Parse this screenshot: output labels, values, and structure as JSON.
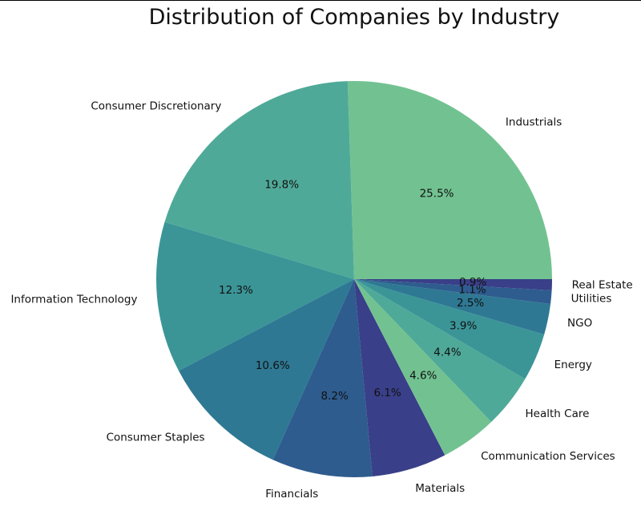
{
  "chart_data": {
    "type": "pie",
    "title": "Distribution of Companies by Industry",
    "start_angle_deg": 0,
    "direction": "counterclockwise",
    "slices": [
      {
        "label": "Industrials",
        "value": 25.5,
        "pct_label": "25.5%",
        "color": "#72c291"
      },
      {
        "label": "Consumer Discretionary",
        "value": 19.8,
        "pct_label": "19.8%",
        "color": "#4fa998"
      },
      {
        "label": "Information Technology",
        "value": 12.3,
        "pct_label": "12.3%",
        "color": "#3b9597"
      },
      {
        "label": "Consumer Staples",
        "value": 10.6,
        "pct_label": "10.6%",
        "color": "#2e7893"
      },
      {
        "label": "Financials",
        "value": 8.2,
        "pct_label": "8.2%",
        "color": "#2e5c8e"
      },
      {
        "label": "Materials",
        "value": 6.1,
        "pct_label": "6.1%",
        "color": "#393f88"
      },
      {
        "label": "Communication Services",
        "value": 4.6,
        "pct_label": "4.6%",
        "color": "#72c291"
      },
      {
        "label": "Health Care",
        "value": 4.4,
        "pct_label": "4.4%",
        "color": "#4fa998"
      },
      {
        "label": "Energy",
        "value": 3.9,
        "pct_label": "3.9%",
        "color": "#3b9597"
      },
      {
        "label": "NGO",
        "value": 2.5,
        "pct_label": "2.5%",
        "color": "#2e7893"
      },
      {
        "label": "Utilities",
        "value": 1.1,
        "pct_label": "1.1%",
        "color": "#2e5c8e"
      },
      {
        "label": "Real Estate",
        "value": 0.9,
        "pct_label": "0.9%",
        "color": "#393f88"
      }
    ]
  }
}
